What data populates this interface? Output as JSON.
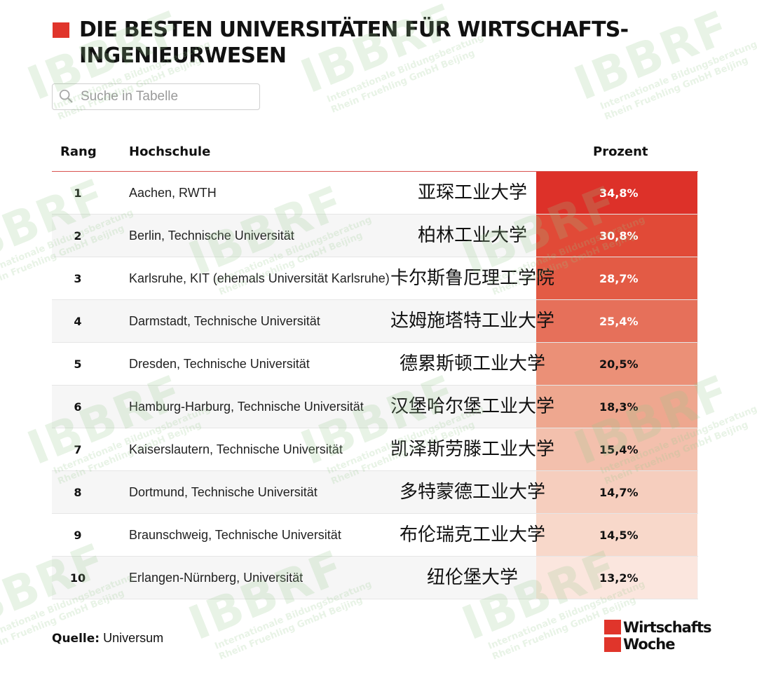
{
  "title": "DIE BESTEN UNIVERSITÄTEN FÜR WIRTSCHAFTS-INGENIEURWESEN",
  "search": {
    "placeholder": "Suche in Tabelle"
  },
  "table": {
    "headers": {
      "rank": "Rang",
      "school": "Hochschule",
      "percent": "Prozent"
    },
    "rows": [
      {
        "rank": "1",
        "name": "Aachen, RWTH",
        "chinese": "亚琛工业大学",
        "percent": "34,8%",
        "color": "#dd3129",
        "text_color": "#ffffff"
      },
      {
        "rank": "2",
        "name": "Berlin, Technische Universität",
        "chinese": "柏林工业大学",
        "percent": "30,8%",
        "color": "#e14a37",
        "text_color": "#ffffff"
      },
      {
        "rank": "3",
        "name": "Karlsruhe, KIT (ehemals Universität Karlsruhe)",
        "chinese": "卡尔斯鲁厄理工学院",
        "percent": "28,7%",
        "color": "#e35b45",
        "text_color": "#ffffff"
      },
      {
        "rank": "4",
        "name": "Darmstadt, Technische Universität",
        "chinese": "达姆施塔特工业大学",
        "percent": "25,4%",
        "color": "#e6705a",
        "text_color": "#ffffff"
      },
      {
        "rank": "5",
        "name": "Dresden, Technische Universität",
        "chinese": "德累斯顿工业大学",
        "percent": "20,5%",
        "color": "#eb9077",
        "text_color": "#111111"
      },
      {
        "rank": "6",
        "name": "Hamburg-Harburg, Technische Universität",
        "chinese": "汉堡哈尔堡工业大学",
        "percent": "18,3%",
        "color": "#eea78f",
        "text_color": "#111111"
      },
      {
        "rank": "7",
        "name": "Kaiserslautern, Technische Universität",
        "chinese": "凯泽斯劳滕工业大学",
        "percent": "15,4%",
        "color": "#f3c0ad",
        "text_color": "#111111"
      },
      {
        "rank": "8",
        "name": "Dortmund, Technische Universität",
        "chinese": "多特蒙德工业大学",
        "percent": "14,7%",
        "color": "#f6cebe",
        "text_color": "#111111"
      },
      {
        "rank": "9",
        "name": "Braunschweig, Technische Universität",
        "chinese": "布伦瑞克工业大学",
        "percent": "14,5%",
        "color": "#f8d8ca",
        "text_color": "#111111"
      },
      {
        "rank": "10",
        "name": "Erlangen-Nürnberg, Universität",
        "chinese": "纽伦堡大学",
        "percent": "13,2%",
        "color": "#fbe6de",
        "text_color": "#111111"
      }
    ]
  },
  "source": {
    "label": "Quelle:",
    "value": "Universum"
  },
  "logo": {
    "line1": "Wirtschafts",
    "line2": "Woche"
  },
  "watermark": {
    "brand": "IBBRF",
    "line1": "Internationale Bildungsberatung",
    "line2": "Rhein Fruehling GmbH Beijing"
  }
}
